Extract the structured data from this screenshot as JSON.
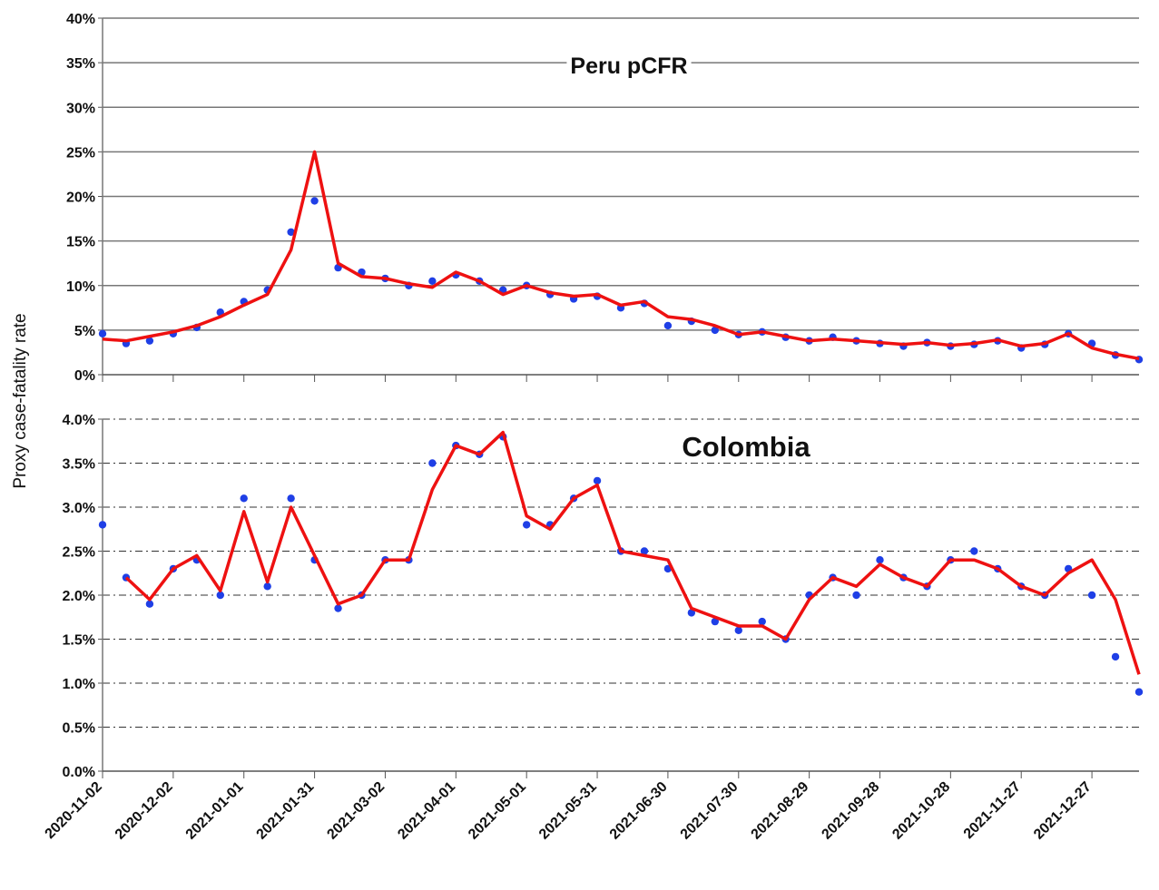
{
  "chart_data": [
    {
      "type": "line",
      "title": "Peru pCFR",
      "grid": true,
      "grid_style": "solid",
      "x": [
        "2020-11-02",
        "2020-11-12",
        "2020-11-22",
        "2020-12-02",
        "2020-12-12",
        "2020-12-22",
        "2021-01-01",
        "2021-01-11",
        "2021-01-21",
        "2021-01-31",
        "2021-02-10",
        "2021-02-20",
        "2021-03-02",
        "2021-03-12",
        "2021-03-22",
        "2021-04-01",
        "2021-04-11",
        "2021-04-21",
        "2021-05-01",
        "2021-05-11",
        "2021-05-21",
        "2021-05-31",
        "2021-06-10",
        "2021-06-20",
        "2021-06-30",
        "2021-07-10",
        "2021-07-20",
        "2021-07-30",
        "2021-08-09",
        "2021-08-19",
        "2021-08-29",
        "2021-09-08",
        "2021-09-18",
        "2021-09-28",
        "2021-10-08",
        "2021-10-18",
        "2021-10-28",
        "2021-11-07",
        "2021-11-17",
        "2021-11-27",
        "2021-12-07",
        "2021-12-17",
        "2021-12-27",
        "2022-01-06",
        "2022-01-16"
      ],
      "xlim": [
        "2020-11-02",
        "2022-01-16"
      ],
      "ylim": [
        0,
        40
      ],
      "yticks": [
        {
          "value": 0,
          "label": "0%"
        },
        {
          "value": 5,
          "label": "5%"
        },
        {
          "value": 10,
          "label": "10%"
        },
        {
          "value": 15,
          "label": "15%"
        },
        {
          "value": 20,
          "label": "20%"
        },
        {
          "value": 25,
          "label": "25%"
        },
        {
          "value": 30,
          "label": "30%"
        },
        {
          "value": 35,
          "label": "35%"
        },
        {
          "value": 40,
          "label": "40%"
        }
      ],
      "series": [
        {
          "type": "scatter",
          "color": "#1f3fe6",
          "values": [
            4.6,
            3.5,
            3.8,
            4.6,
            5.3,
            7.0,
            8.2,
            9.5,
            16.0,
            19.5,
            12.0,
            11.5,
            10.8,
            10.0,
            10.5,
            11.2,
            10.5,
            9.5,
            10.0,
            9.0,
            8.5,
            8.8,
            7.5,
            8.0,
            5.5,
            6.0,
            5.0,
            4.5,
            4.8,
            4.2,
            3.8,
            4.2,
            3.8,
            3.5,
            3.2,
            3.6,
            3.2,
            3.4,
            3.8,
            3.0,
            3.4,
            4.6,
            3.5,
            2.2,
            1.7
          ]
        },
        {
          "type": "line",
          "color": "#ee1111",
          "values": [
            4.0,
            3.8,
            4.3,
            4.8,
            5.5,
            6.5,
            7.8,
            9.0,
            14.0,
            25.0,
            12.5,
            11.0,
            10.8,
            10.2,
            9.8,
            11.5,
            10.5,
            9.0,
            10.0,
            9.2,
            8.8,
            9.0,
            7.8,
            8.2,
            6.5,
            6.2,
            5.5,
            4.5,
            4.8,
            4.3,
            3.8,
            4.0,
            3.8,
            3.6,
            3.4,
            3.6,
            3.3,
            3.5,
            3.9,
            3.2,
            3.5,
            4.6,
            3.0,
            2.3,
            1.8
          ]
        }
      ]
    },
    {
      "type": "line",
      "title": "Colombia",
      "ylabel": "Proxy case-fatality rate",
      "grid": true,
      "grid_style": "dashdot",
      "x": [
        "2020-11-02",
        "2020-11-12",
        "2020-11-22",
        "2020-12-02",
        "2020-12-12",
        "2020-12-22",
        "2021-01-01",
        "2021-01-11",
        "2021-01-21",
        "2021-01-31",
        "2021-02-10",
        "2021-02-20",
        "2021-03-02",
        "2021-03-12",
        "2021-03-22",
        "2021-04-01",
        "2021-04-11",
        "2021-04-21",
        "2021-05-01",
        "2021-05-11",
        "2021-05-21",
        "2021-05-31",
        "2021-06-10",
        "2021-06-20",
        "2021-06-30",
        "2021-07-10",
        "2021-07-20",
        "2021-07-30",
        "2021-08-09",
        "2021-08-19",
        "2021-08-29",
        "2021-09-08",
        "2021-09-18",
        "2021-09-28",
        "2021-10-08",
        "2021-10-18",
        "2021-10-28",
        "2021-11-07",
        "2021-11-17",
        "2021-11-27",
        "2021-12-07",
        "2021-12-17",
        "2021-12-27",
        "2022-01-06",
        "2022-01-16"
      ],
      "xlim": [
        "2020-11-02",
        "2022-01-16"
      ],
      "xticks": [
        "2020-11-02",
        "2020-12-02",
        "2021-01-01",
        "2021-01-31",
        "2021-03-02",
        "2021-04-01",
        "2021-05-01",
        "2021-05-31",
        "2021-06-30",
        "2021-07-30",
        "2021-08-29",
        "2021-09-28",
        "2021-10-28",
        "2021-11-27",
        "2021-12-27"
      ],
      "ylim": [
        0,
        4
      ],
      "yticks": [
        {
          "value": 0,
          "label": "0.0%"
        },
        {
          "value": 0.5,
          "label": "0.5%"
        },
        {
          "value": 1,
          "label": "1.0%"
        },
        {
          "value": 1.5,
          "label": "1.5%"
        },
        {
          "value": 2,
          "label": "2.0%"
        },
        {
          "value": 2.5,
          "label": "2.5%"
        },
        {
          "value": 3,
          "label": "3.0%"
        },
        {
          "value": 3.5,
          "label": "3.5%"
        },
        {
          "value": 4,
          "label": "4.0%"
        }
      ],
      "series": [
        {
          "type": "scatter",
          "color": "#1f3fe6",
          "values": [
            2.8,
            2.2,
            1.9,
            2.3,
            2.4,
            2.0,
            3.1,
            2.1,
            3.1,
            2.4,
            1.85,
            2.0,
            2.4,
            2.4,
            3.5,
            3.7,
            3.6,
            3.8,
            2.8,
            2.8,
            3.1,
            3.3,
            2.5,
            2.5,
            2.3,
            1.8,
            1.7,
            1.6,
            1.7,
            1.5,
            2.0,
            2.2,
            2.0,
            2.4,
            2.2,
            2.1,
            2.4,
            2.5,
            2.3,
            2.1,
            2.0,
            2.3,
            2.0,
            1.3,
            0.9
          ]
        },
        {
          "type": "line",
          "color": "#ee1111",
          "values": [
            null,
            2.2,
            1.95,
            2.3,
            2.45,
            2.05,
            2.95,
            2.15,
            3.0,
            2.45,
            1.9,
            2.0,
            2.4,
            2.4,
            3.2,
            3.7,
            3.6,
            3.85,
            2.9,
            2.75,
            3.1,
            3.25,
            2.5,
            2.45,
            2.4,
            1.85,
            1.75,
            1.65,
            1.65,
            1.5,
            1.95,
            2.2,
            2.1,
            2.35,
            2.2,
            2.1,
            2.4,
            2.4,
            2.3,
            2.1,
            2.0,
            2.25,
            2.4,
            1.95,
            1.1
          ]
        }
      ]
    }
  ]
}
